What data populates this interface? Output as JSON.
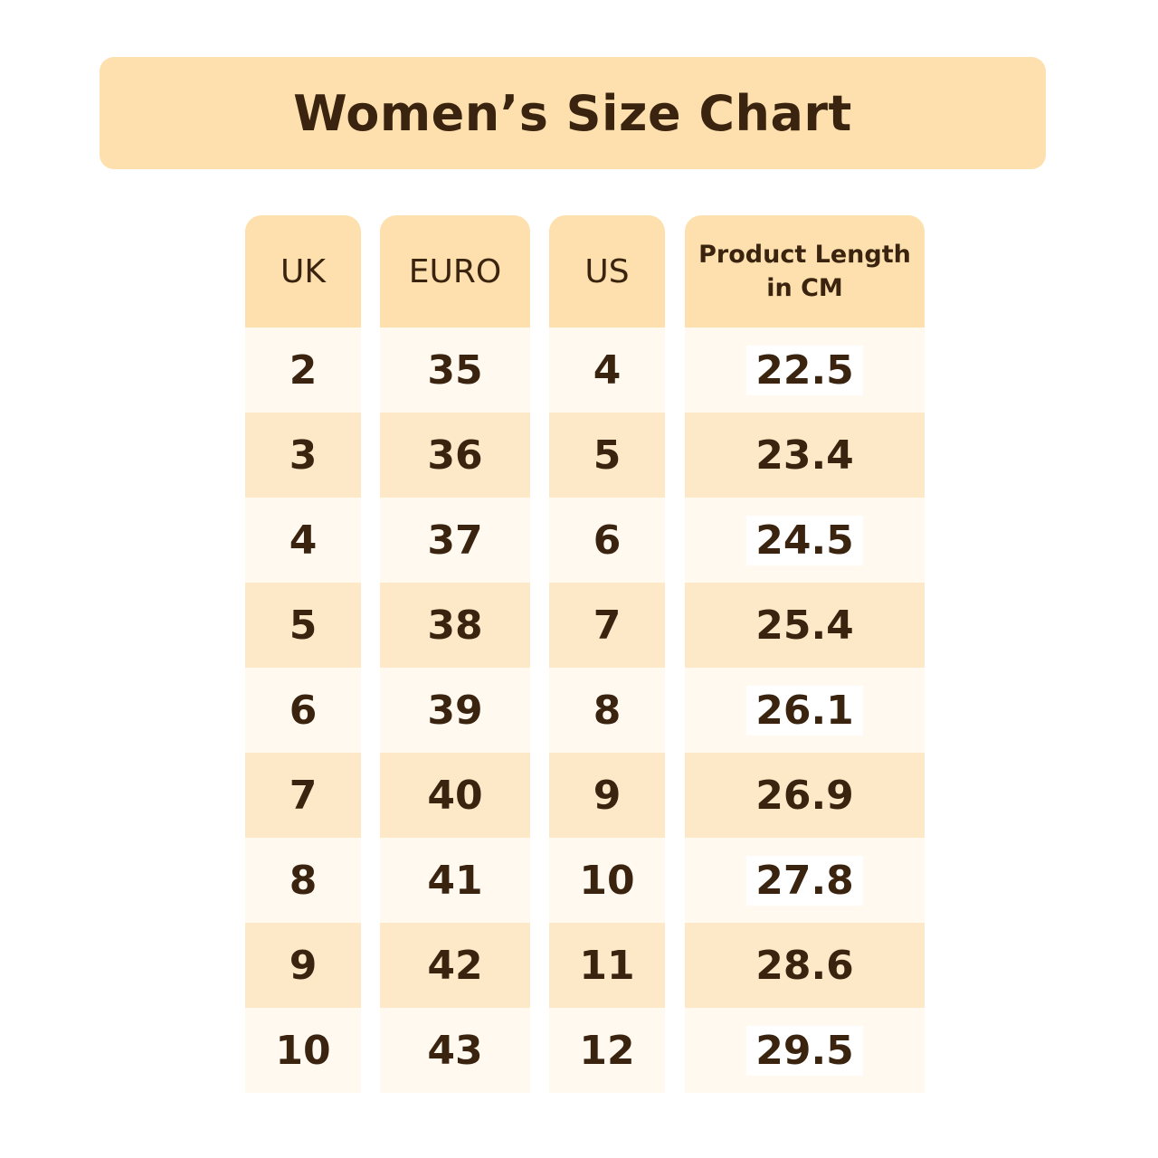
{
  "title": "Women’s Size Chart",
  "columns": {
    "uk": "UK",
    "euro": "EURO",
    "us": "US",
    "length": "Product Length\nin CM"
  },
  "uk": [
    "2",
    "3",
    "4",
    "5",
    "6",
    "7",
    "8",
    "9",
    "10"
  ],
  "euro": [
    "35",
    "36",
    "37",
    "38",
    "39",
    "40",
    "41",
    "42",
    "43"
  ],
  "us": [
    "4",
    "5",
    "6",
    "7",
    "8",
    "9",
    "10",
    "11",
    "12"
  ],
  "length": [
    "22.5",
    "23.4",
    "24.5",
    "25.4",
    "26.1",
    "26.9",
    "27.8",
    "28.6",
    "29.5"
  ],
  "colors": {
    "banner": "#fde0ad",
    "row_light": "#fff9ef",
    "row_dark": "#fde9c8",
    "text": "#3a2410"
  }
}
